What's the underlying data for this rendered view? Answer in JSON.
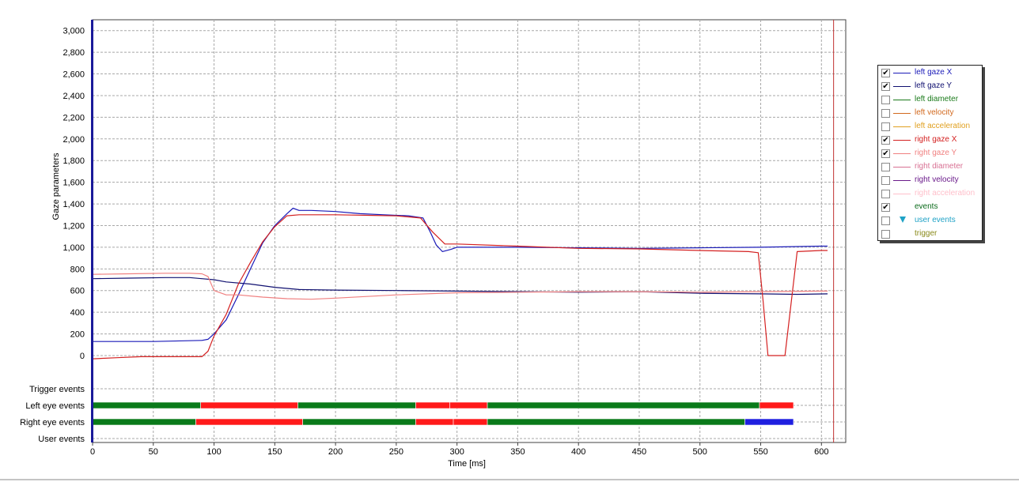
{
  "colors": {
    "left_gaze_x": "#1a1ab8",
    "left_gaze_y": "#101070",
    "right_gaze_x": "#d42020",
    "right_gaze_y": "#f08080",
    "fixation": "#0a7a1a",
    "saccade": "#ff1a1a",
    "blink": "#1f1fe0",
    "axis_left": "#1a1a9a"
  },
  "legend": {
    "items": [
      {
        "label": "left gaze X",
        "checked": true,
        "color": "#1a1ab8",
        "kind": "line"
      },
      {
        "label": "left gaze Y",
        "checked": true,
        "color": "#101070",
        "kind": "line"
      },
      {
        "label": "left diameter",
        "checked": false,
        "color": "#1a7a1a",
        "kind": "line"
      },
      {
        "label": "left velocity",
        "checked": false,
        "color": "#d2691e",
        "kind": "line"
      },
      {
        "label": "left acceleration",
        "checked": false,
        "color": "#e0a020",
        "kind": "line"
      },
      {
        "label": "right gaze X",
        "checked": true,
        "color": "#d42020",
        "kind": "line"
      },
      {
        "label": "right gaze Y",
        "checked": true,
        "color": "#f08080",
        "kind": "line"
      },
      {
        "label": "right diameter",
        "checked": false,
        "color": "#d87093",
        "kind": "line"
      },
      {
        "label": "right velocity",
        "checked": false,
        "color": "#6a1a8a",
        "kind": "line"
      },
      {
        "label": "right acceleration",
        "checked": false,
        "color": "#ffc0cb",
        "kind": "line"
      },
      {
        "label": "events",
        "checked": true,
        "color": "#0a6a1a",
        "kind": "none"
      },
      {
        "label": "user events",
        "checked": false,
        "color": "#1fa2c6",
        "kind": "triangle"
      },
      {
        "label": "trigger",
        "checked": false,
        "color": "#8a8a1a",
        "kind": "none"
      }
    ]
  },
  "chart_data": {
    "type": "line",
    "title": "",
    "xlabel": "Time [ms]",
    "ylabel": "Gaze parameters",
    "xlim": [
      0,
      620
    ],
    "ylim": [
      0,
      3100
    ],
    "grid": true,
    "legend_position": "right",
    "x_ticks": [
      0,
      50,
      100,
      150,
      200,
      250,
      300,
      350,
      400,
      450,
      500,
      550,
      600
    ],
    "y_ticks": [
      0,
      200,
      400,
      600,
      800,
      1000,
      1200,
      1400,
      1600,
      1800,
      2000,
      2200,
      2400,
      2600,
      2800,
      3000
    ],
    "y_tick_labels": [
      "0",
      "200",
      "400",
      "600",
      "800",
      "1,000",
      "1,200",
      "1,400",
      "1,600",
      "1,800",
      "2,000",
      "2,200",
      "2,400",
      "2,600",
      "2,800",
      "3,000"
    ],
    "cursor_x": 610,
    "series": [
      {
        "name": "left gaze X",
        "color": "#1a1ab8",
        "x": [
          0,
          50,
          90,
          95,
          100,
          110,
          120,
          130,
          140,
          150,
          160,
          165,
          170,
          180,
          200,
          220,
          240,
          260,
          272,
          278,
          283,
          288,
          295,
          300,
          350,
          400,
          450,
          500,
          550,
          600,
          605
        ],
        "y": [
          130,
          130,
          140,
          150,
          200,
          330,
          560,
          800,
          1040,
          1200,
          1310,
          1360,
          1340,
          1340,
          1330,
          1310,
          1300,
          1290,
          1270,
          1140,
          1020,
          960,
          980,
          1000,
          1000,
          995,
          990,
          995,
          1000,
          1010,
          1010
        ]
      },
      {
        "name": "left gaze Y",
        "color": "#101070",
        "x": [
          0,
          30,
          60,
          80,
          90,
          100,
          110,
          130,
          150,
          170,
          200,
          250,
          300,
          350,
          400,
          450,
          500,
          550,
          580,
          605
        ],
        "y": [
          710,
          715,
          720,
          720,
          710,
          700,
          680,
          660,
          630,
          610,
          605,
          600,
          595,
          590,
          585,
          590,
          575,
          570,
          565,
          570
        ]
      },
      {
        "name": "right gaze X",
        "color": "#d42020",
        "x": [
          0,
          20,
          40,
          60,
          80,
          90,
          95,
          100,
          110,
          120,
          130,
          140,
          150,
          160,
          170,
          200,
          250,
          270,
          280,
          290,
          300,
          350,
          400,
          450,
          500,
          540,
          548,
          552,
          556,
          560,
          565,
          570,
          580,
          600,
          605
        ],
        "y": [
          -30,
          -20,
          -10,
          -10,
          -10,
          -10,
          40,
          180,
          380,
          660,
          860,
          1050,
          1190,
          1290,
          1300,
          1300,
          1290,
          1270,
          1140,
          1030,
          1030,
          1010,
          990,
          985,
          970,
          960,
          950,
          500,
          0,
          0,
          0,
          0,
          960,
          970,
          970
        ]
      },
      {
        "name": "right gaze Y",
        "color": "#f08080",
        "x": [
          0,
          30,
          60,
          80,
          90,
          95,
          100,
          110,
          120,
          140,
          160,
          180,
          200,
          250,
          300,
          350,
          400,
          450,
          500,
          550,
          600,
          605
        ],
        "y": [
          750,
          755,
          760,
          760,
          755,
          730,
          600,
          560,
          560,
          540,
          525,
          520,
          530,
          560,
          580,
          585,
          590,
          590,
          585,
          590,
          595,
          595
        ]
      }
    ],
    "event_rows": [
      {
        "label": "Trigger events",
        "segments": []
      },
      {
        "label": "Left eye events",
        "segments": [
          {
            "type": "fixation",
            "start": 0,
            "end": 89
          },
          {
            "type": "saccade",
            "start": 89,
            "end": 169
          },
          {
            "type": "fixation",
            "start": 169,
            "end": 266
          },
          {
            "type": "saccade",
            "start": 266,
            "end": 294
          },
          {
            "type": "saccade",
            "start": 294,
            "end": 325
          },
          {
            "type": "fixation",
            "start": 325,
            "end": 549
          },
          {
            "type": "saccade",
            "start": 549,
            "end": 577
          }
        ]
      },
      {
        "label": "Right eye events",
        "segments": [
          {
            "type": "fixation",
            "start": 0,
            "end": 85
          },
          {
            "type": "saccade",
            "start": 85,
            "end": 173
          },
          {
            "type": "fixation",
            "start": 173,
            "end": 266
          },
          {
            "type": "saccade",
            "start": 266,
            "end": 297
          },
          {
            "type": "saccade",
            "start": 297,
            "end": 325
          },
          {
            "type": "fixation",
            "start": 325,
            "end": 537
          },
          {
            "type": "blink",
            "start": 537,
            "end": 577
          }
        ]
      },
      {
        "label": "User events",
        "segments": []
      }
    ]
  }
}
